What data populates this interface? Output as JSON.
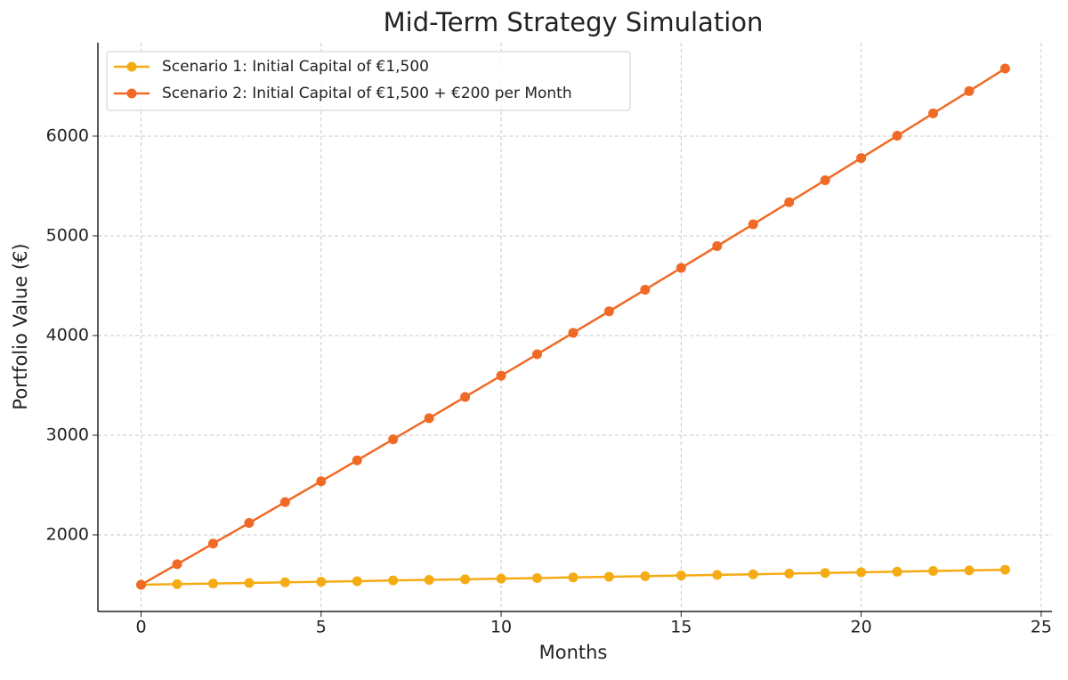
{
  "chart_data": {
    "type": "line",
    "title": "Mid-Term Strategy Simulation",
    "x_label": "Months",
    "y_label": "Portfolio Value (€)",
    "x": [
      0,
      1,
      2,
      3,
      4,
      5,
      6,
      7,
      8,
      9,
      10,
      11,
      12,
      13,
      14,
      15,
      16,
      17,
      18,
      19,
      20,
      21,
      22,
      23,
      24
    ],
    "series": [
      {
        "name": "Scenario 1: Initial Capital of €1,500",
        "color": "#f5ac14",
        "values": [
          1500,
          1506,
          1512,
          1518,
          1524,
          1530,
          1536,
          1543,
          1549,
          1555,
          1561,
          1567,
          1574,
          1580,
          1586,
          1593,
          1599,
          1605,
          1612,
          1618,
          1625,
          1631,
          1638,
          1644,
          1651
        ]
      },
      {
        "name": "Scenario 2: Initial Capital of €1,500 + €200 per Month",
        "color": "#f06a25",
        "values": [
          1500,
          1706,
          1913,
          2120,
          2329,
          2538,
          2748,
          2959,
          3171,
          3384,
          3597,
          3812,
          4027,
          4243,
          4460,
          4678,
          4897,
          5116,
          5337,
          5558,
          5780,
          6004,
          6228,
          6452,
          6678
        ]
      }
    ],
    "xlim": [
      -1.2,
      25.3
    ],
    "ylim": [
      1232,
      6937
    ],
    "xticks": [
      0,
      5,
      10,
      15,
      20,
      25
    ],
    "yticks": [
      2000,
      3000,
      4000,
      5000,
      6000
    ],
    "grid": true,
    "legend": "upper left"
  }
}
